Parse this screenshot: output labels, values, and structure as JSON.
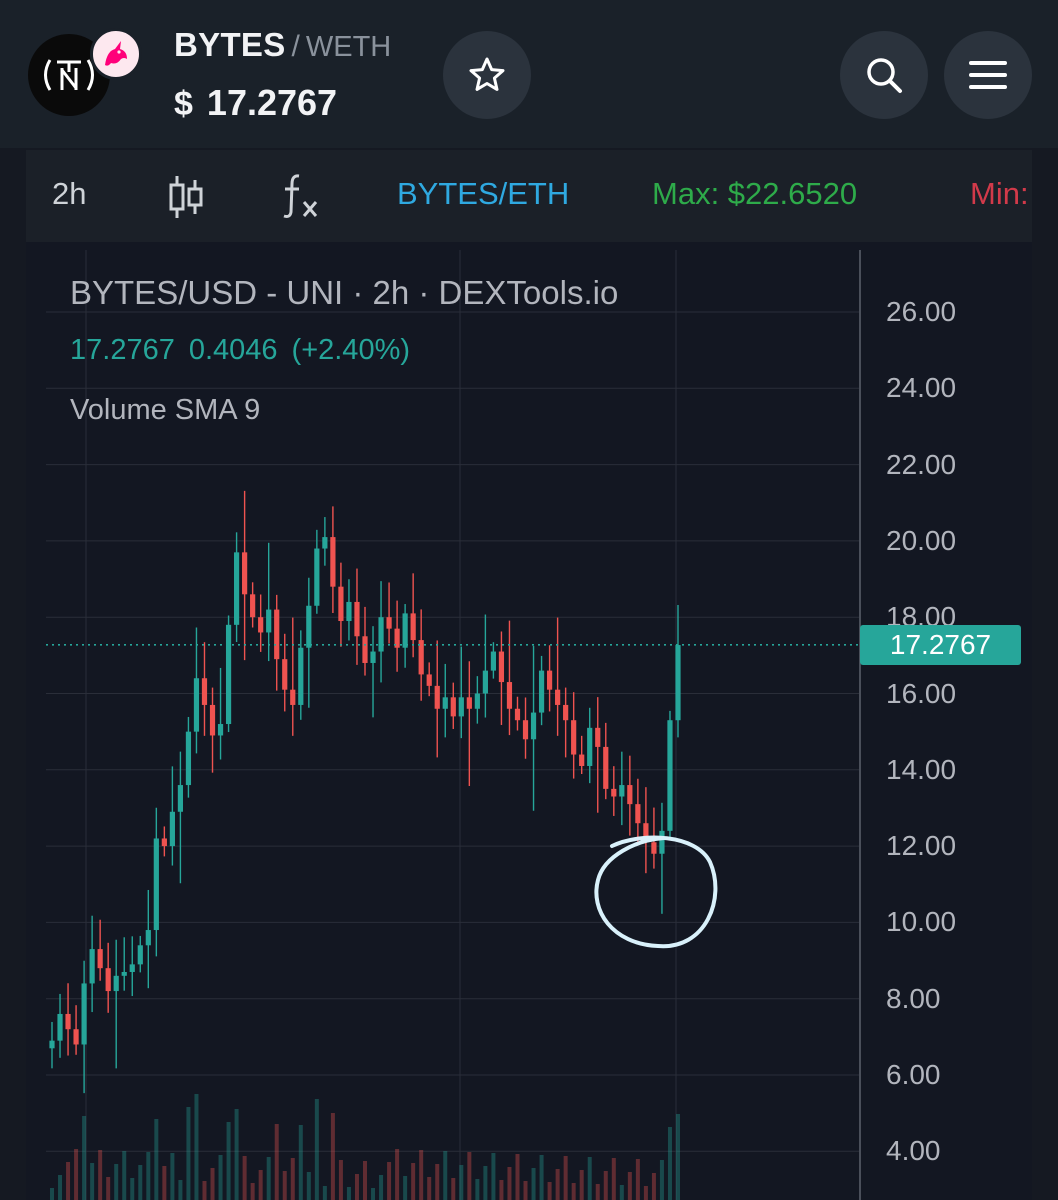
{
  "header": {
    "token_symbol": "BYTES",
    "pair_separator": "/",
    "quote_symbol": "WETH",
    "price_currency": "$",
    "price": "17.2767",
    "logo_icon": "neo-tokyo-logo-icon",
    "dex_icon": "uniswap-unicorn-icon"
  },
  "toolbar": {
    "interval": "2h",
    "pair": "BYTES/ETH",
    "max": "Max: $22.6520",
    "min": "Min:"
  },
  "legend": {
    "title": "BYTES/USD - UNI · 2h · DEXTools.io",
    "last": "17.2767",
    "change": "0.4046",
    "change_pct": "(+2.40%)",
    "indicator": "Volume SMA 9"
  },
  "colors": {
    "up": "#26a69a",
    "down": "#ef5350",
    "pair_link": "#2fa9e1",
    "max": "#2eab4a",
    "min": "#d23a4a",
    "annotation": "#d9f1fb"
  },
  "chart_data": {
    "type": "candlestick",
    "y_axis_ticks": [
      "26.00",
      "24.00",
      "22.00",
      "20.00",
      "18.00",
      "16.00",
      "14.00",
      "12.00",
      "10.00",
      "8.00",
      "6.00",
      "4.00"
    ],
    "ylim": [
      4,
      27
    ],
    "last_price_label": "17.2767",
    "last_price": 17.2767,
    "series_close": [
      6.9,
      7.6,
      7.2,
      6.8,
      8.4,
      9.3,
      8.8,
      8.2,
      8.6,
      8.7,
      8.9,
      9.4,
      9.8,
      12.2,
      12.0,
      12.9,
      13.6,
      15.0,
      16.4,
      15.7,
      14.9,
      15.2,
      17.8,
      19.7,
      18.6,
      18.0,
      17.6,
      18.2,
      16.9,
      16.1,
      15.7,
      17.2,
      18.3,
      19.8,
      20.1,
      18.8,
      17.9,
      18.4,
      17.5,
      16.8,
      17.1,
      18.0,
      17.7,
      17.2,
      18.1,
      17.4,
      16.5,
      16.2,
      15.6,
      15.9,
      15.4,
      15.9,
      15.6,
      16.0,
      16.6,
      17.1,
      16.3,
      15.6,
      15.3,
      14.8,
      15.5,
      16.6,
      16.1,
      15.7,
      15.3,
      14.4,
      14.1,
      15.1,
      14.6,
      13.5,
      13.3,
      13.6,
      13.1,
      12.6,
      12.1,
      11.8,
      12.4,
      15.3,
      17.27
    ],
    "annotations": [
      "hand-drawn circle around local low"
    ],
    "grid": true
  }
}
